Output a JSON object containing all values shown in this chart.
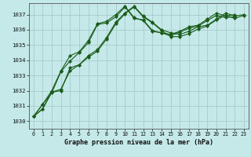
{
  "title": "Graphe pression niveau de la mer (hPa)",
  "background_color": "#c5e8e8",
  "grid_color": "#a8cccc",
  "line_color": "#1a5c1a",
  "marker_color": "#1a5c1a",
  "xlim": [
    -0.5,
    23.5
  ],
  "ylim": [
    1029.5,
    1037.75
  ],
  "yticks": [
    1030,
    1031,
    1032,
    1033,
    1034,
    1035,
    1036,
    1037
  ],
  "xticks": [
    0,
    1,
    2,
    3,
    4,
    5,
    6,
    7,
    8,
    9,
    10,
    11,
    12,
    13,
    14,
    15,
    16,
    17,
    18,
    19,
    20,
    21,
    22,
    23
  ],
  "series": [
    [
      1030.3,
      1030.8,
      1031.9,
      1032.0,
      1033.5,
      1033.7,
      1034.3,
      1034.7,
      1035.5,
      1036.5,
      1037.1,
      1037.55,
      1036.9,
      1036.5,
      1036.0,
      1035.8,
      1035.7,
      1035.9,
      1036.2,
      1036.3,
      1036.7,
      1037.1,
      1036.9,
      1037.0
    ],
    [
      1030.3,
      1030.8,
      1031.9,
      1032.1,
      1033.3,
      1033.7,
      1034.2,
      1034.6,
      1035.4,
      1036.4,
      1037.05,
      1037.5,
      1036.85,
      1036.45,
      1035.95,
      1035.55,
      1035.55,
      1035.75,
      1036.05,
      1036.25,
      1036.65,
      1036.95,
      1036.75,
      1036.95
    ],
    [
      1030.3,
      1031.1,
      1032.0,
      1033.3,
      1034.3,
      1034.55,
      1035.3,
      1036.4,
      1036.55,
      1037.0,
      1037.55,
      1036.8,
      1036.6,
      1035.9,
      1035.8,
      1035.7,
      1035.9,
      1036.2,
      1036.3,
      1036.7,
      1037.1,
      1036.9,
      1037.0,
      null
    ],
    [
      1030.3,
      1031.1,
      1031.85,
      1033.25,
      1033.95,
      1034.5,
      1035.15,
      1036.35,
      1036.45,
      1036.85,
      1037.5,
      1036.75,
      1036.65,
      1035.95,
      1035.8,
      1035.6,
      1035.85,
      1036.1,
      1036.25,
      1036.6,
      1036.95,
      1036.8,
      1036.85,
      null
    ]
  ]
}
